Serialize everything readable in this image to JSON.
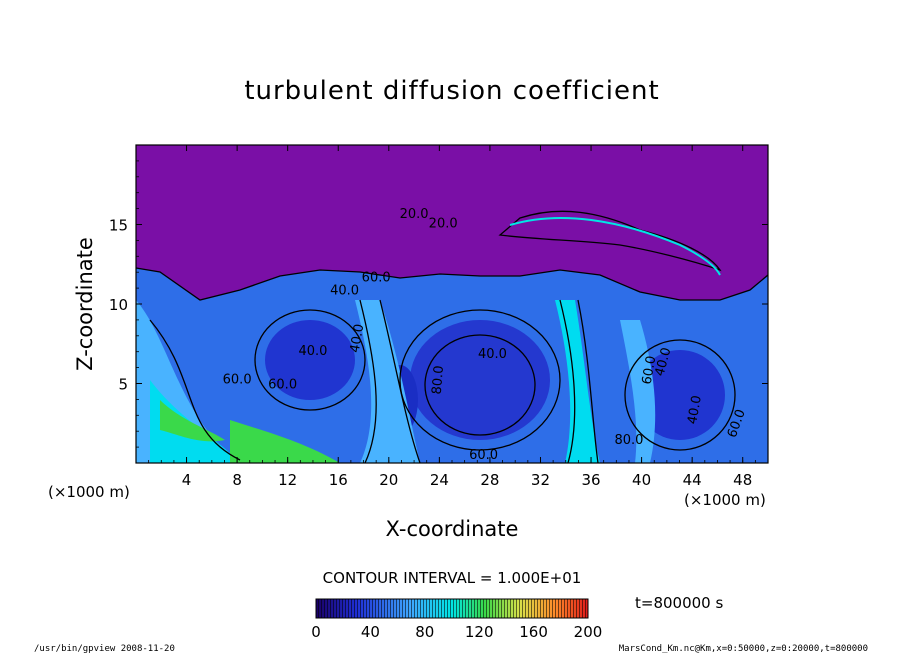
{
  "chart_data": {
    "type": "heatmap",
    "title": "turbulent diffusion coefficient",
    "xlabel": "X-coordinate",
    "ylabel": "Z-coordinate",
    "x_unit": "(×1000 m)",
    "x_ticks": [
      4,
      8,
      12,
      16,
      20,
      24,
      28,
      32,
      36,
      40,
      44,
      48
    ],
    "y_ticks": [
      5,
      10,
      15
    ],
    "xlim": [
      0,
      50
    ],
    "ylim": [
      0,
      20
    ],
    "contour_interval": "CONTOUR INTERVAL = 1.000E+01",
    "colorbar": {
      "ticks": [
        0,
        40,
        80,
        120,
        160,
        200
      ],
      "range": [
        0,
        200
      ]
    },
    "contour_labels": [
      "20.0",
      "20.0",
      "60.0",
      "40.0",
      "40.0",
      "40.0",
      "40.0",
      "60.0",
      "60.0",
      "40.0",
      "60.0",
      "80.0",
      "80.0",
      "40.0",
      "60.0",
      "60.0"
    ],
    "time_label": "t=800000 s"
  },
  "footer": {
    "left": "/usr/bin/gpview   2008-11-20",
    "right": "MarsCond_Km.nc@Km,x=0:50000,z=0:20000,t=800000"
  },
  "colors": {
    "top_region": "#7a0fa6",
    "deep_blue": "#1d2fd0",
    "light_blue": "#3fa9ff",
    "cyan": "#00e0ff",
    "green": "#3ad94a"
  }
}
